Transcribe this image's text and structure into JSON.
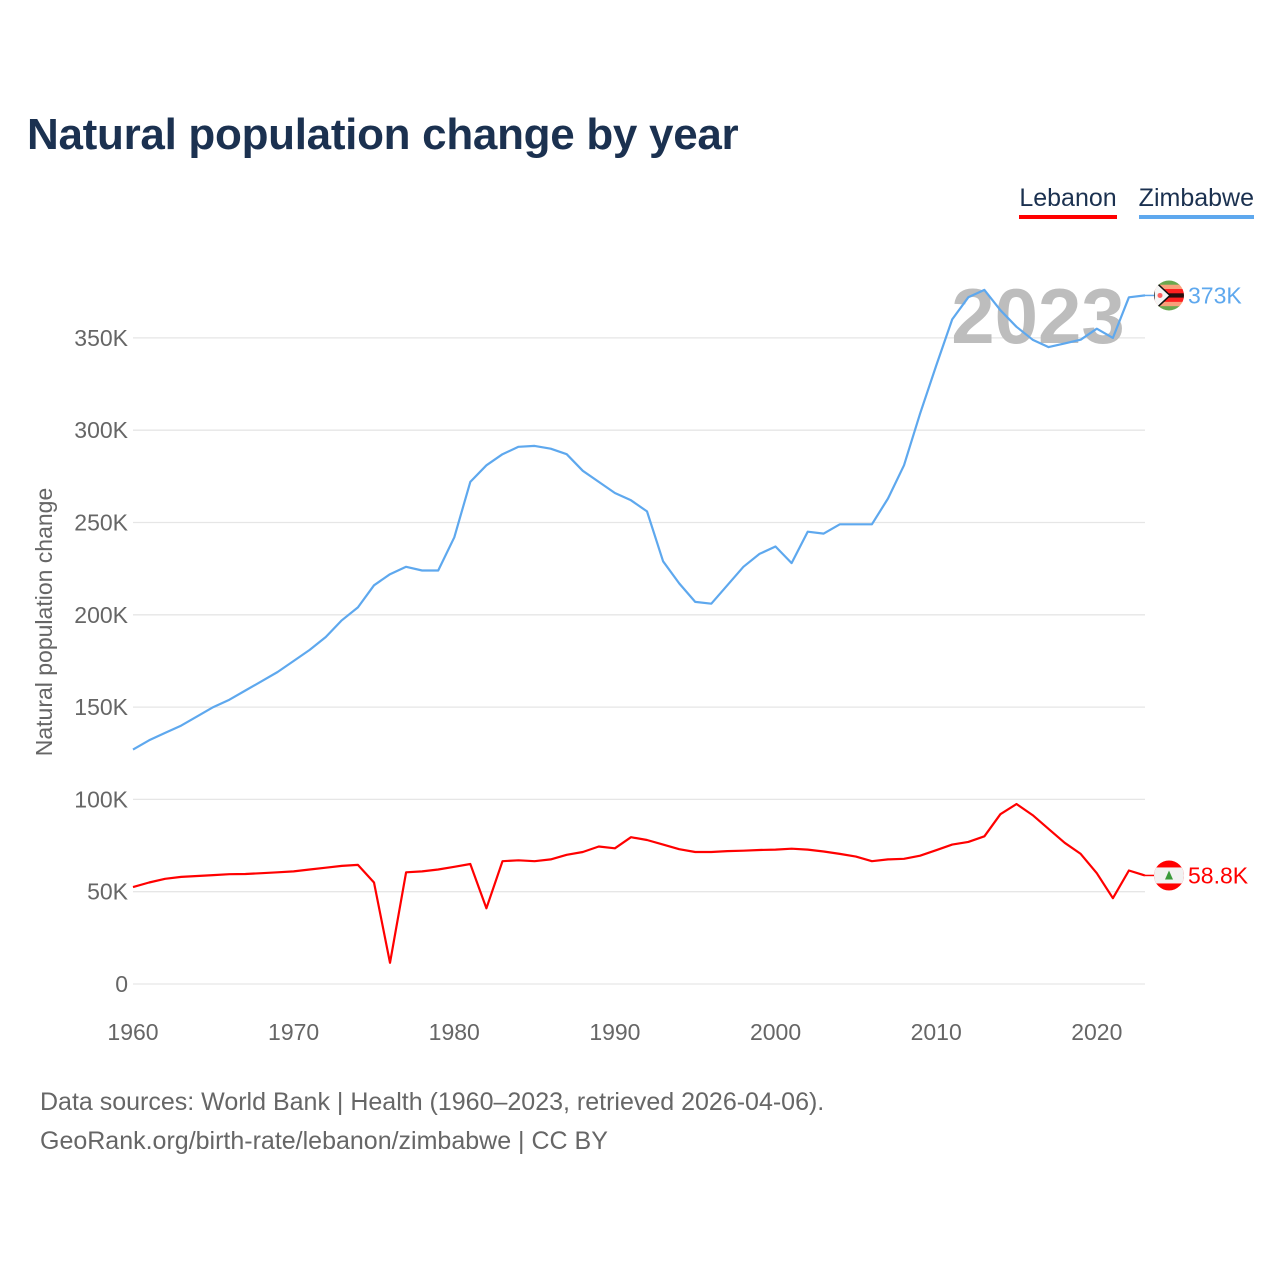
{
  "chart_data": {
    "type": "line",
    "title": "Natural population change by year",
    "xlabel": "",
    "ylabel": "Natural population change",
    "xlim": [
      1960,
      2023
    ],
    "ylim": [
      0,
      380000
    ],
    "yticks": [
      0,
      50000,
      100000,
      150000,
      200000,
      250000,
      300000,
      350000
    ],
    "ytick_labels": [
      "0",
      "50K",
      "100K",
      "150K",
      "200K",
      "250K",
      "300K",
      "350K"
    ],
    "xticks": [
      1960,
      1970,
      1980,
      1990,
      2000,
      2010,
      2020
    ],
    "xtick_labels": [
      "1960",
      "1970",
      "1980",
      "1990",
      "2000",
      "2010",
      "2020"
    ],
    "grid": true,
    "legend_position": "top-right",
    "year_watermark": "2023",
    "x_start": 1960,
    "series": [
      {
        "name": "Lebanon",
        "color": "#ff0000",
        "end_label": "58.8K",
        "flag": "lebanon-flag",
        "values": [
          52500,
          55000,
          57000,
          58000,
          58500,
          59000,
          59500,
          59600,
          60000,
          60500,
          61000,
          62000,
          63000,
          64000,
          64500,
          55000,
          11500,
          60500,
          61000,
          62000,
          63500,
          65000,
          41000,
          66500,
          67000,
          66500,
          67500,
          70000,
          71500,
          74500,
          73500,
          79500,
          78000,
          75500,
          73000,
          71500,
          71500,
          72000,
          72200,
          72600,
          72800,
          73300,
          72800,
          71800,
          70500,
          69000,
          66500,
          67500,
          67800,
          69500,
          72500,
          75500,
          77000,
          80000,
          92000,
          97500,
          91500,
          84000,
          76500,
          70500,
          60000,
          46500,
          61500,
          58800
        ]
      },
      {
        "name": "Zimbabwe",
        "color": "#5ea8ee",
        "end_label": "373K",
        "flag": "zimbabwe-flag",
        "values": [
          127000,
          132000,
          136000,
          140000,
          145000,
          150000,
          154000,
          159000,
          164000,
          169000,
          175000,
          181000,
          188000,
          197000,
          204000,
          216000,
          222000,
          226000,
          224000,
          224000,
          242000,
          272000,
          281000,
          287000,
          291000,
          291500,
          290000,
          287000,
          278000,
          272000,
          266000,
          262000,
          256000,
          229000,
          217000,
          207000,
          206000,
          216000,
          226000,
          233000,
          237000,
          228000,
          245000,
          244000,
          249000,
          249000,
          249000,
          263000,
          281000,
          309000,
          335000,
          360000,
          372000,
          376000,
          365000,
          356000,
          349000,
          345000,
          347000,
          349000,
          355000,
          350000,
          372000,
          373000
        ]
      }
    ]
  },
  "footer": {
    "line1": "Data sources: World Bank | Health (1960–2023, retrieved 2026-04-06).",
    "line2": "GeoRank.org/birth-rate/lebanon/zimbabwe | CC BY"
  }
}
